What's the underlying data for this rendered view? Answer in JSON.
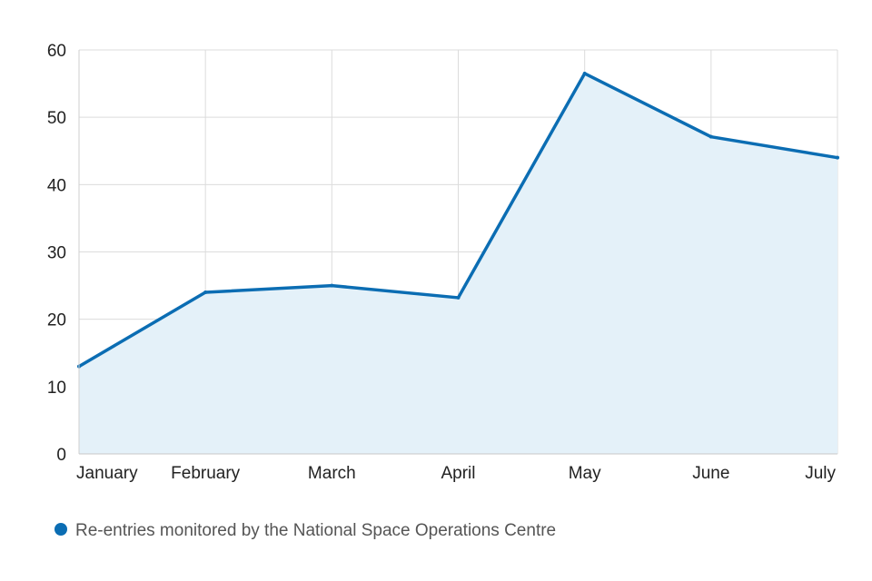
{
  "chart_data": {
    "type": "area",
    "title": "",
    "xlabel": "",
    "ylabel": "",
    "categories": [
      "January",
      "February",
      "March",
      "April",
      "May",
      "June",
      "July"
    ],
    "series": [
      {
        "name": "Re-entries monitored by the National Space Operations Centre",
        "values": [
          13,
          24,
          25,
          23.2,
          56.5,
          47.1,
          44
        ],
        "color": "#0b6db3",
        "fill": "#e4f1f9"
      }
    ],
    "ylim": [
      0,
      60
    ],
    "yticks": [
      0,
      10,
      20,
      30,
      40,
      50,
      60
    ],
    "grid": true,
    "legend_position": "bottom-left"
  }
}
